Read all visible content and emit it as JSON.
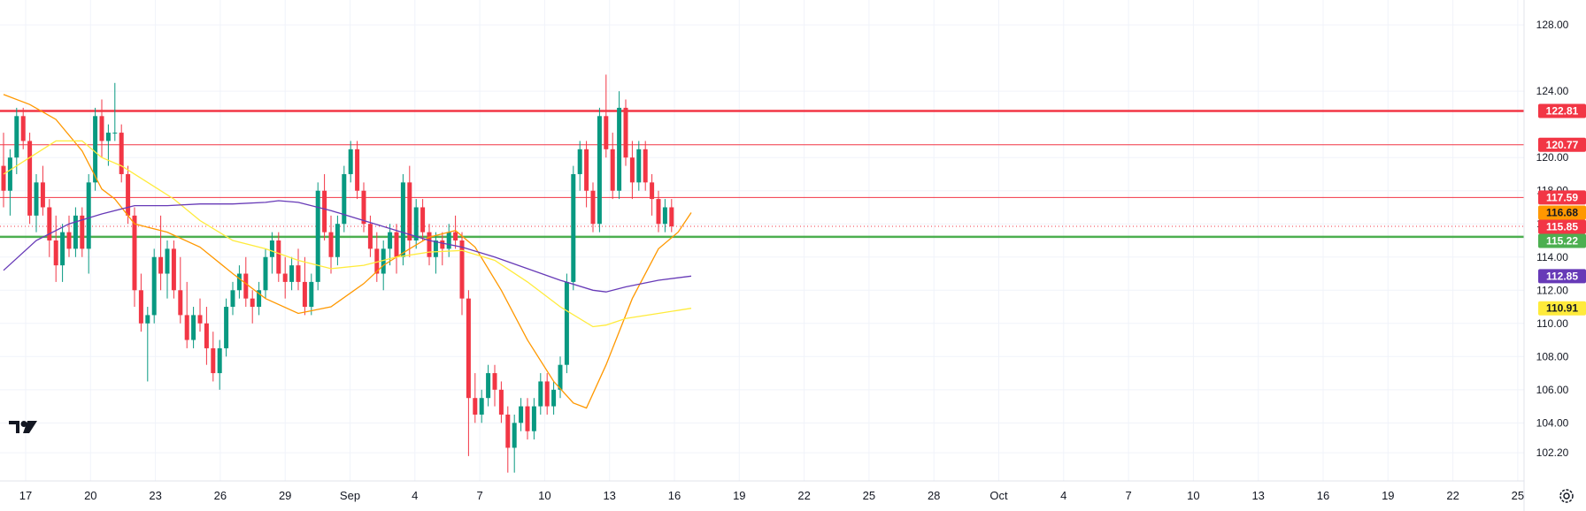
{
  "chart_data": {
    "type": "candlestick",
    "y_axis": {
      "ticks": [
        102.2,
        104.0,
        106.0,
        108.0,
        110.0,
        112.0,
        114.0,
        116.0,
        118.0,
        120.0,
        124.0,
        128.0
      ],
      "tick_labels": [
        "102.20",
        "104.00",
        "106.00",
        "108.00",
        "110.00",
        "112.00",
        "114.00",
        "116.00",
        "118.00",
        "120.00",
        "124.00",
        "128.00"
      ],
      "range": [
        100.5,
        129.5
      ]
    },
    "x_axis": {
      "tick_labels": [
        "17",
        "20",
        "23",
        "26",
        "29",
        "Sep",
        "4",
        "7",
        "10",
        "13",
        "16",
        "19",
        "22",
        "25",
        "28",
        "Oct",
        "4",
        "7",
        "10",
        "13",
        "16",
        "19",
        "22",
        "25"
      ]
    },
    "horizontal_levels": [
      {
        "value": 122.81,
        "label": "122.81",
        "color": "#f23645",
        "width": "thick"
      },
      {
        "value": 120.77,
        "label": "120.77",
        "color": "#f23645",
        "width": "thin"
      },
      {
        "value": 117.59,
        "label": "117.59",
        "color": "#f23645",
        "width": "thin"
      },
      {
        "value": 115.22,
        "label": "115.22",
        "color": "#4caf50",
        "width": "thick"
      }
    ],
    "price_markers": [
      {
        "value": 116.68,
        "label": "116.68",
        "color": "#ff9800"
      },
      {
        "value": 115.85,
        "label": "115.85",
        "color": "#f23645"
      },
      {
        "value": 112.85,
        "label": "112.85",
        "color": "#673ab7"
      },
      {
        "value": 110.91,
        "label": "110.91",
        "color": "#ffeb3b"
      }
    ],
    "candles": [
      [
        119.5,
        121.5,
        117.0,
        118.0
      ],
      [
        118.0,
        120.5,
        116.5,
        120.0
      ],
      [
        120.0,
        123.0,
        119.0,
        122.5
      ],
      [
        122.5,
        123.0,
        120.5,
        121.0
      ],
      [
        121.0,
        121.5,
        116.0,
        116.5
      ],
      [
        116.5,
        119.0,
        115.5,
        118.5
      ],
      [
        118.5,
        119.5,
        116.5,
        117.0
      ],
      [
        117.0,
        117.5,
        114.0,
        115.0
      ],
      [
        115.0,
        116.5,
        112.5,
        113.5
      ],
      [
        113.5,
        116.0,
        112.5,
        115.5
      ],
      [
        115.5,
        116.5,
        114.0,
        114.5
      ],
      [
        114.5,
        117.0,
        114.0,
        116.5
      ],
      [
        116.5,
        117.0,
        114.0,
        114.5
      ],
      [
        114.5,
        119.0,
        113.0,
        118.5
      ],
      [
        118.5,
        123.0,
        118.0,
        122.5
      ],
      [
        122.5,
        123.5,
        120.0,
        121.0
      ],
      [
        121.0,
        122.0,
        119.5,
        121.5
      ],
      [
        121.5,
        124.5,
        121.0,
        121.5
      ],
      [
        121.5,
        122.0,
        118.5,
        119.0
      ],
      [
        119.0,
        119.5,
        116.0,
        116.5
      ],
      [
        116.5,
        117.0,
        111.0,
        112.0
      ],
      [
        112.0,
        113.0,
        109.5,
        110.0
      ],
      [
        110.0,
        111.0,
        106.5,
        110.5
      ],
      [
        110.5,
        114.5,
        110.0,
        114.0
      ],
      [
        114.0,
        116.5,
        112.0,
        113.0
      ],
      [
        113.0,
        115.0,
        111.5,
        114.5
      ],
      [
        114.5,
        115.0,
        111.5,
        112.0
      ],
      [
        112.0,
        114.0,
        110.0,
        110.5
      ],
      [
        110.5,
        112.5,
        108.5,
        109.0
      ],
      [
        109.0,
        111.0,
        108.5,
        110.5
      ],
      [
        110.5,
        111.5,
        109.5,
        110.0
      ],
      [
        110.0,
        111.0,
        107.5,
        108.5
      ],
      [
        108.5,
        109.5,
        106.5,
        107.0
      ],
      [
        107.0,
        109.0,
        106.0,
        108.5
      ],
      [
        108.5,
        111.5,
        108.0,
        111.0
      ],
      [
        111.0,
        112.5,
        110.5,
        112.0
      ],
      [
        112.0,
        113.5,
        111.5,
        113.0
      ],
      [
        113.0,
        114.0,
        111.0,
        111.5
      ],
      [
        111.5,
        112.0,
        110.0,
        111.0
      ],
      [
        111.0,
        112.5,
        110.5,
        112.0
      ],
      [
        112.0,
        114.5,
        111.5,
        114.0
      ],
      [
        114.0,
        115.5,
        113.0,
        115.0
      ],
      [
        115.0,
        115.5,
        112.5,
        113.0
      ],
      [
        113.0,
        114.0,
        111.5,
        112.5
      ],
      [
        112.5,
        114.0,
        112.0,
        113.5
      ],
      [
        113.5,
        114.5,
        112.0,
        112.5
      ],
      [
        112.5,
        114.0,
        110.5,
        111.0
      ],
      [
        111.0,
        113.0,
        110.5,
        112.5
      ],
      [
        112.5,
        118.5,
        112.0,
        118.0
      ],
      [
        118.0,
        119.0,
        115.0,
        115.5
      ],
      [
        115.5,
        116.5,
        113.0,
        114.0
      ],
      [
        114.0,
        116.5,
        113.5,
        116.0
      ],
      [
        116.0,
        119.5,
        115.5,
        119.0
      ],
      [
        119.0,
        121.0,
        118.5,
        120.5
      ],
      [
        120.5,
        121.0,
        117.5,
        118.0
      ],
      [
        118.0,
        118.5,
        115.5,
        116.0
      ],
      [
        116.0,
        116.5,
        114.0,
        114.5
      ],
      [
        114.5,
        115.5,
        112.5,
        113.0
      ],
      [
        113.0,
        115.0,
        112.0,
        114.5
      ],
      [
        114.5,
        116.0,
        113.5,
        115.5
      ],
      [
        115.5,
        116.0,
        113.0,
        114.0
      ],
      [
        114.0,
        119.0,
        113.5,
        118.5
      ],
      [
        118.5,
        119.5,
        114.0,
        115.0
      ],
      [
        115.0,
        117.5,
        114.5,
        117.0
      ],
      [
        117.0,
        117.5,
        115.0,
        115.5
      ],
      [
        115.5,
        116.0,
        113.5,
        114.0
      ],
      [
        114.0,
        115.5,
        113.0,
        115.0
      ],
      [
        115.0,
        115.5,
        113.5,
        114.5
      ],
      [
        114.5,
        116.0,
        114.0,
        115.5
      ],
      [
        115.5,
        116.5,
        114.5,
        115.0
      ],
      [
        115.0,
        115.5,
        110.5,
        111.5
      ],
      [
        111.5,
        112.0,
        102.0,
        105.5
      ],
      [
        105.5,
        107.0,
        104.0,
        104.5
      ],
      [
        104.5,
        106.0,
        104.0,
        105.5
      ],
      [
        105.5,
        107.5,
        105.0,
        107.0
      ],
      [
        107.0,
        107.5,
        105.0,
        106.0
      ],
      [
        106.0,
        106.5,
        104.0,
        104.5
      ],
      [
        104.5,
        105.0,
        101.0,
        102.5
      ],
      [
        102.5,
        104.5,
        101.0,
        104.0
      ],
      [
        104.0,
        105.5,
        103.5,
        105.0
      ],
      [
        105.0,
        105.5,
        103.0,
        103.5
      ],
      [
        103.5,
        105.5,
        103.0,
        105.0
      ],
      [
        105.0,
        107.0,
        104.5,
        106.5
      ],
      [
        106.5,
        107.0,
        104.5,
        105.0
      ],
      [
        105.0,
        106.5,
        104.5,
        106.0
      ],
      [
        106.0,
        108.0,
        105.5,
        107.5
      ],
      [
        107.5,
        113.0,
        107.0,
        112.5
      ],
      [
        112.5,
        119.5,
        112.0,
        119.0
      ],
      [
        119.0,
        121.0,
        118.0,
        120.5
      ],
      [
        120.5,
        121.0,
        117.0,
        118.0
      ],
      [
        118.0,
        118.5,
        115.5,
        116.0
      ],
      [
        116.0,
        123.0,
        115.5,
        122.5
      ],
      [
        122.5,
        125.0,
        120.0,
        120.5
      ],
      [
        120.5,
        121.5,
        117.5,
        118.0
      ],
      [
        118.0,
        124.0,
        117.5,
        123.0
      ],
      [
        123.0,
        123.5,
        119.5,
        120.0
      ],
      [
        120.0,
        121.0,
        117.5,
        118.5
      ],
      [
        118.5,
        121.0,
        118.0,
        120.5
      ],
      [
        120.5,
        121.0,
        118.0,
        118.5
      ],
      [
        118.5,
        119.0,
        116.5,
        117.5
      ],
      [
        117.5,
        118.0,
        115.5,
        116.0
      ],
      [
        116.0,
        117.5,
        115.5,
        117.0
      ],
      [
        117.0,
        117.5,
        115.5,
        115.85
      ]
    ],
    "series": [
      {
        "color": "#ff9800",
        "points": [
          [
            0,
            123.8
          ],
          [
            4,
            123.2
          ],
          [
            8,
            122.3
          ],
          [
            12,
            120.4
          ],
          [
            15,
            118.1
          ],
          [
            17,
            117.5
          ],
          [
            20,
            116.0
          ],
          [
            22,
            115.8
          ],
          [
            25,
            115.5
          ],
          [
            30,
            114.6
          ],
          [
            35,
            113.0
          ],
          [
            40,
            111.5
          ],
          [
            45,
            110.6
          ],
          [
            50,
            111.0
          ],
          [
            55,
            112.4
          ],
          [
            58,
            113.5
          ],
          [
            62,
            114.5
          ],
          [
            65,
            115.2
          ],
          [
            69,
            115.6
          ],
          [
            72,
            114.6
          ],
          [
            76,
            112.0
          ],
          [
            80,
            109.0
          ],
          [
            84,
            106.5
          ],
          [
            87,
            105.2
          ],
          [
            89,
            104.9
          ],
          [
            92,
            107.5
          ],
          [
            96,
            111.5
          ],
          [
            100,
            114.5
          ],
          [
            103,
            115.5
          ],
          [
            105,
            116.68
          ]
        ]
      },
      {
        "color": "#ffeb3b",
        "points": [
          [
            0,
            119.0
          ],
          [
            4,
            120.0
          ],
          [
            8,
            121.0
          ],
          [
            12,
            121.0
          ],
          [
            15,
            120.0
          ],
          [
            18,
            119.5
          ],
          [
            22,
            118.5
          ],
          [
            26,
            117.5
          ],
          [
            30,
            116.2
          ],
          [
            35,
            115.0
          ],
          [
            40,
            114.5
          ],
          [
            45,
            113.8
          ],
          [
            50,
            113.3
          ],
          [
            55,
            113.5
          ],
          [
            60,
            114.0
          ],
          [
            65,
            114.3
          ],
          [
            70,
            114.4
          ],
          [
            75,
            113.8
          ],
          [
            80,
            112.5
          ],
          [
            85,
            111.0
          ],
          [
            90,
            109.8
          ],
          [
            92,
            109.9
          ],
          [
            95,
            110.3
          ],
          [
            100,
            110.6
          ],
          [
            105,
            110.91
          ]
        ]
      },
      {
        "color": "#673ab7",
        "points": [
          [
            0,
            113.2
          ],
          [
            5,
            115.0
          ],
          [
            10,
            116.0
          ],
          [
            15,
            116.6
          ],
          [
            20,
            117.1
          ],
          [
            25,
            117.1
          ],
          [
            30,
            117.2
          ],
          [
            35,
            117.2
          ],
          [
            40,
            117.3
          ],
          [
            42,
            117.4
          ],
          [
            45,
            117.3
          ],
          [
            50,
            116.8
          ],
          [
            55,
            116.2
          ],
          [
            60,
            115.6
          ],
          [
            65,
            115.0
          ],
          [
            70,
            114.6
          ],
          [
            75,
            114.0
          ],
          [
            80,
            113.3
          ],
          [
            85,
            112.6
          ],
          [
            90,
            112.0
          ],
          [
            92,
            111.9
          ],
          [
            95,
            112.2
          ],
          [
            100,
            112.6
          ],
          [
            105,
            112.85
          ]
        ]
      }
    ],
    "last_price": 115.85
  },
  "icons": {
    "logo": "tradingview-logo-icon",
    "settings": "settings-gear-icon"
  }
}
